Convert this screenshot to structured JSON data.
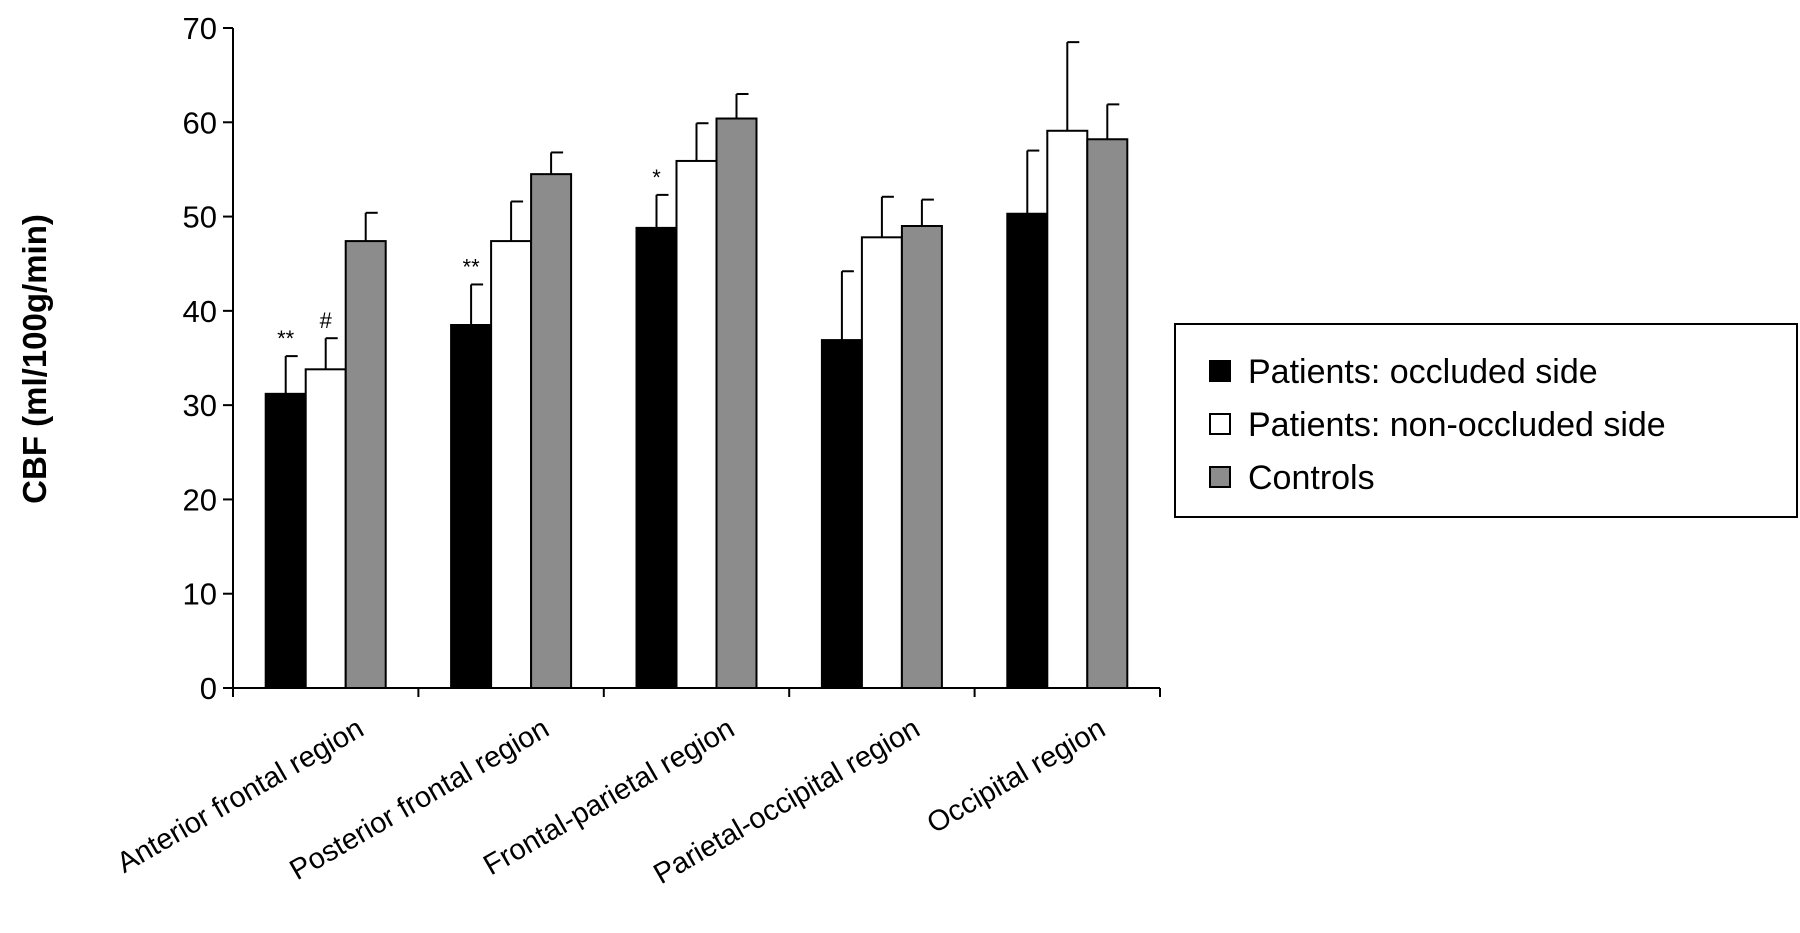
{
  "chart_data": {
    "type": "bar",
    "ylabel": "CBF (ml/100g/min)",
    "xlabel": "",
    "ylim": [
      0,
      70
    ],
    "yticks": [
      0,
      10,
      20,
      30,
      40,
      50,
      60,
      70
    ],
    "categories": [
      "Anterior frontal region",
      "Posterior frontal region",
      "Frontal-parietal region",
      "Parietal-occipital region",
      "Occipital region"
    ],
    "series": [
      {
        "name": "Patients: occluded side",
        "color": "#000000",
        "values": [
          31.2,
          38.5,
          48.8,
          36.9,
          50.3
        ],
        "errors": [
          4.0,
          4.3,
          3.5,
          7.3,
          6.7
        ],
        "annotations": [
          "**",
          "**",
          "*",
          "",
          ""
        ]
      },
      {
        "name": "Patients: non-occluded side",
        "color": "#ffffff",
        "values": [
          33.8,
          47.4,
          55.9,
          47.8,
          59.1
        ],
        "errors": [
          3.3,
          4.2,
          4.0,
          4.3,
          9.4
        ],
        "annotations": [
          "#",
          "",
          "",
          "",
          ""
        ]
      },
      {
        "name": "Controls",
        "color": "#8c8c8c",
        "values": [
          47.4,
          54.5,
          60.4,
          49.0,
          58.2
        ],
        "errors": [
          3.0,
          2.3,
          2.6,
          2.8,
          3.7
        ],
        "annotations": [
          "",
          "",
          "",
          "",
          ""
        ]
      }
    ],
    "grid": false,
    "legend": "right"
  }
}
